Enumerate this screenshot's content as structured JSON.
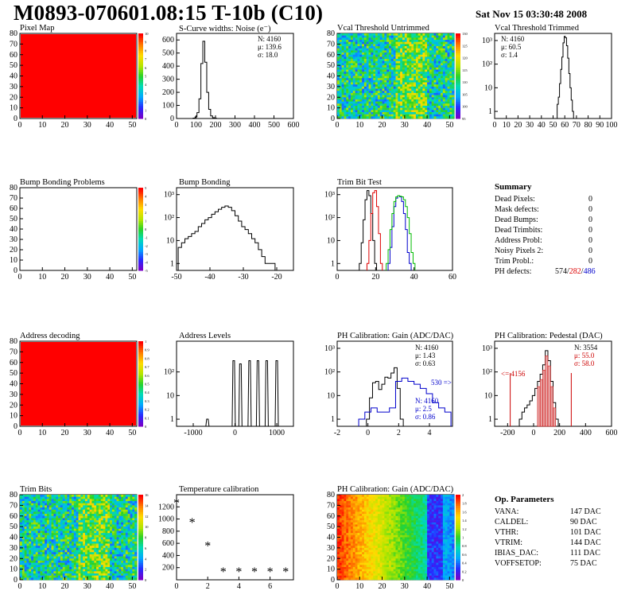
{
  "header": {
    "title": "M0893-070601.08:15 T-10b (C10)",
    "date": "Sat Nov 15 03:30:48 2008"
  },
  "panels": {
    "p1": {
      "title": "Pixel Map",
      "colorbar_ticks": [
        "10",
        "9",
        "8",
        "7",
        "6",
        "5",
        "4",
        "3",
        "2",
        "1",
        "0"
      ]
    },
    "p2": {
      "title": "S-Curve widths: Noise (e⁻)",
      "stats": [
        "N: 4160",
        "μ: 139.6",
        "σ: 18.0"
      ]
    },
    "p3": {
      "title": "Vcal Threshold Untrimmed",
      "colorbar_ticks": [
        "130",
        "125",
        "120",
        "115",
        "110",
        "105",
        "100",
        "95"
      ]
    },
    "p4": {
      "title": "Vcal Threshold Trimmed",
      "stats": [
        "N: 4160",
        "μ: 60.5",
        "σ:  1.4"
      ]
    },
    "p5": {
      "title": "Bump Bonding Problems",
      "colorbar_ticks": [
        "5",
        "4",
        "3",
        "2",
        "1",
        "0",
        "-1",
        "-2",
        "-3",
        "-4",
        "-5"
      ]
    },
    "p6": {
      "title": "Bump Bonding"
    },
    "p7": {
      "title": "Trim Bit Test"
    },
    "p9": {
      "title": "Address decoding",
      "colorbar_ticks": [
        "1",
        "0.9",
        "0.8",
        "0.7",
        "0.6",
        "0.5",
        "0.4",
        "0.3",
        "0.2",
        "0.1",
        "0"
      ]
    },
    "p10": {
      "title": "Address Levels"
    },
    "p11": {
      "title": "PH Calibration: Gain (ADC/DAC)",
      "stats": [
        "N: 4160",
        "μ: 1.43",
        "σ: 0.63"
      ],
      "overflow": "530 =>",
      "stats2": [
        "N: 4160",
        "μ: 2.5",
        "σ: 0.86"
      ]
    },
    "p12": {
      "title": "PH Calibration: Pedestal (DAC)",
      "stats": [
        "N: 3554",
        "μ: 55.0",
        "σ: 58.0"
      ],
      "underflow": "<= 4156"
    },
    "p13": {
      "title": "Trim Bits",
      "colorbar_ticks": [
        "16",
        "14",
        "12",
        "10",
        "8",
        "6",
        "4",
        "2",
        "0"
      ]
    },
    "p14": {
      "title": "Temperature calibration"
    },
    "p15": {
      "title": "PH Calibration: Gain (ADC/DAC)",
      "colorbar_ticks": [
        "2",
        "1.8",
        "1.6",
        "1.4",
        "1.2",
        "1",
        "0.8",
        "0.6",
        "0.4",
        "0.2",
        "0"
      ]
    }
  },
  "summary": {
    "title": "Summary",
    "rows": [
      {
        "label": "Dead Pixels:",
        "value": "0"
      },
      {
        "label": "Mask defects:",
        "value": "0"
      },
      {
        "label": "Dead Bumps:",
        "value": "0"
      },
      {
        "label": "Dead Trimbits:",
        "value": "0"
      },
      {
        "label": "Address Probl:",
        "value": "0"
      },
      {
        "label": "Noisy Pixels 2:",
        "value": "0"
      },
      {
        "label": "Trim Probl.:",
        "value": "0"
      }
    ],
    "ph_label": "PH defects:",
    "ph_values": [
      "574",
      "282",
      "486"
    ]
  },
  "op_params": {
    "title": "Op. Parameters",
    "rows": [
      {
        "label": "VANA:",
        "value": "147 DAC"
      },
      {
        "label": "CALDEL:",
        "value": "90 DAC"
      },
      {
        "label": "VTHR:",
        "value": "101 DAC"
      },
      {
        "label": "VTRIM:",
        "value": "144 DAC"
      },
      {
        "label": "IBIAS_DAC:",
        "value": "111 DAC"
      },
      {
        "label": "VOFFSETOP:",
        "value": "75 DAC"
      }
    ]
  },
  "chart_data": [
    {
      "id": "p1",
      "type": "heatmap",
      "title": "Pixel Map",
      "xlim": [
        0,
        52
      ],
      "ylim": [
        0,
        80
      ],
      "xticks": [
        0,
        10,
        20,
        30,
        40,
        50
      ],
      "yticks": [
        0,
        10,
        20,
        30,
        40,
        50,
        60,
        70,
        80
      ],
      "zlim": [
        0,
        10
      ],
      "fill": "uniform-max"
    },
    {
      "id": "p2",
      "type": "bar",
      "title": "S-Curve widths: Noise (e-)",
      "xlim": [
        0,
        600
      ],
      "ylim": [
        0,
        650
      ],
      "xticks": [
        0,
        100,
        200,
        300,
        400,
        500,
        600
      ],
      "yticks": [
        0,
        100,
        200,
        300,
        400,
        500,
        600
      ],
      "x": [
        80,
        90,
        100,
        110,
        120,
        130,
        140,
        150,
        160,
        170,
        180,
        190,
        200,
        210,
        220
      ],
      "values": [
        0,
        3,
        12,
        45,
        150,
        420,
        590,
        430,
        200,
        70,
        20,
        6,
        2,
        0,
        0
      ]
    },
    {
      "id": "p3",
      "type": "heatmap",
      "title": "Vcal Threshold Untrimmed",
      "xlim": [
        0,
        52
      ],
      "ylim": [
        0,
        80
      ],
      "xticks": [
        0,
        10,
        20,
        30,
        40,
        50
      ],
      "yticks": [
        0,
        10,
        20,
        30,
        40,
        50,
        60,
        70,
        80
      ],
      "zlim": [
        92,
        132
      ],
      "fill": "noise-mid"
    },
    {
      "id": "p4",
      "type": "bar",
      "title": "Vcal Threshold Trimmed",
      "log": true,
      "xlim": [
        0,
        100
      ],
      "ylim": [
        0.5,
        2000
      ],
      "xticks": [
        0,
        10,
        20,
        30,
        40,
        50,
        60,
        70,
        80,
        90,
        100
      ],
      "ylabels": [
        "1",
        "10",
        "10²",
        "10³"
      ],
      "x": [
        54,
        55,
        56,
        57,
        58,
        59,
        60,
        61,
        62,
        63,
        64,
        65,
        66,
        67
      ],
      "values": [
        2,
        4,
        15,
        60,
        200,
        800,
        1500,
        1300,
        600,
        180,
        40,
        10,
        3,
        1
      ]
    },
    {
      "id": "p5",
      "type": "heatmap",
      "title": "Bump Bonding Problems",
      "xlim": [
        0,
        52
      ],
      "ylim": [
        0,
        80
      ],
      "xticks": [
        0,
        10,
        20,
        30,
        40,
        50
      ],
      "yticks": [
        0,
        10,
        20,
        30,
        40,
        50,
        60,
        70,
        80
      ],
      "zlim": [
        -5,
        5
      ],
      "fill": "empty"
    },
    {
      "id": "p6",
      "type": "bar",
      "title": "Bump Bonding",
      "log": true,
      "xlim": [
        -50,
        -15
      ],
      "ylim": [
        0.5,
        2000
      ],
      "xticks": [
        -50,
        -40,
        -30,
        -20
      ],
      "ylabels": [
        "1",
        "10",
        "10²",
        "10³"
      ],
      "x": [
        -49,
        -48,
        -47,
        -46,
        -45,
        -44,
        -43,
        -42,
        -41,
        -40,
        -39,
        -38,
        -37,
        -36,
        -35,
        -34,
        -33,
        -32,
        -31,
        -30,
        -29,
        -28,
        -27,
        -26,
        -25,
        -24,
        -23,
        -22,
        -21,
        -20
      ],
      "values": [
        5,
        8,
        12,
        15,
        20,
        25,
        40,
        55,
        80,
        100,
        140,
        180,
        230,
        280,
        320,
        280,
        200,
        120,
        70,
        40,
        30,
        20,
        12,
        8,
        4,
        2,
        1,
        1,
        1,
        0.5
      ]
    },
    {
      "id": "p7",
      "type": "bar",
      "title": "Trim Bit Test",
      "log": true,
      "xlim": [
        0,
        60
      ],
      "ylim": [
        0.5,
        2000
      ],
      "xticks": [
        0,
        20,
        40,
        60
      ],
      "ylabels": [
        "1",
        "10",
        "10²",
        "10³"
      ],
      "series": [
        {
          "name": "black",
          "color": "#000000",
          "x": [
            12,
            13,
            14,
            15,
            16,
            17,
            18,
            19,
            20
          ],
          "values": [
            1,
            8,
            80,
            600,
            1500,
            900,
            150,
            10,
            1
          ]
        },
        {
          "name": "red",
          "color": "#dd0000",
          "x": [
            16,
            17,
            18,
            19,
            20,
            21,
            22,
            23
          ],
          "values": [
            1,
            10,
            150,
            1200,
            1500,
            300,
            20,
            1
          ]
        },
        {
          "name": "blue",
          "color": "#0000cc",
          "x": [
            27,
            28,
            29,
            30,
            31,
            32,
            33,
            34,
            35,
            36,
            37,
            38
          ],
          "values": [
            1,
            5,
            40,
            300,
            700,
            900,
            800,
            500,
            150,
            30,
            3,
            1
          ]
        },
        {
          "name": "green",
          "color": "#00bb00",
          "x": [
            26,
            27,
            28,
            29,
            30,
            31,
            32,
            33,
            34,
            35,
            36,
            37,
            38,
            39,
            40
          ],
          "values": [
            1,
            4,
            30,
            150,
            500,
            800,
            900,
            850,
            800,
            600,
            300,
            100,
            20,
            3,
            1
          ]
        }
      ]
    },
    {
      "id": "p9",
      "type": "heatmap",
      "title": "Address decoding",
      "xlim": [
        0,
        52
      ],
      "ylim": [
        0,
        80
      ],
      "xticks": [
        0,
        10,
        20,
        30,
        40,
        50
      ],
      "yticks": [
        0,
        10,
        20,
        30,
        40,
        50,
        60,
        70,
        80
      ],
      "zlim": [
        0,
        1
      ],
      "fill": "uniform-max"
    },
    {
      "id": "p10",
      "type": "bar",
      "title": "Address Levels",
      "log": true,
      "xlim": [
        -1400,
        1400
      ],
      "ylim": [
        0.5,
        2000
      ],
      "xticks": [
        -1000,
        0,
        1000
      ],
      "ylabels": [
        "1",
        "10",
        "10²"
      ],
      "peaks": [
        -660,
        -30,
        130,
        350,
        550,
        760,
        1000
      ],
      "peak_values": [
        1,
        300,
        220,
        300,
        300,
        300,
        300
      ]
    },
    {
      "id": "p11",
      "type": "bar",
      "title": "PH Calibration: Gain (ADC/DAC)",
      "log": true,
      "xlim": [
        -2,
        5.5
      ],
      "ylim": [
        0.5,
        2000
      ],
      "xticks": [
        -2,
        0,
        2,
        4
      ],
      "ylabels": [
        "1",
        "10",
        "10²",
        "10³"
      ],
      "series": [
        {
          "name": "black",
          "color": "#000000",
          "x": [
            0,
            0.2,
            0.4,
            0.6,
            0.8,
            1,
            1.2,
            1.4,
            1.6,
            1.8,
            2,
            2.2
          ],
          "values": [
            1,
            8,
            35,
            40,
            18,
            30,
            60,
            55,
            90,
            150,
            20,
            1
          ]
        },
        {
          "name": "blue",
          "color": "#0000cc",
          "x": [
            -0.4,
            0,
            0.4,
            0.8,
            1.2,
            1.6,
            2,
            2.4,
            2.8,
            3.2,
            3.6,
            4,
            4.4,
            4.8,
            5.2
          ],
          "values": [
            1,
            2,
            3,
            2,
            2,
            3,
            40,
            55,
            40,
            30,
            20,
            12,
            5,
            3,
            2
          ]
        }
      ]
    },
    {
      "id": "p12",
      "type": "bar",
      "title": "PH Calibration: Pedestal (DAC)",
      "log": true,
      "xlim": [
        -300,
        600
      ],
      "ylim": [
        0.5,
        2000
      ],
      "xticks": [
        -200,
        0,
        200,
        400,
        600
      ],
      "ylabels": [
        "1",
        "10",
        "10²",
        "10³"
      ],
      "x": [
        -100,
        -80,
        -60,
        -40,
        -20,
        0,
        20,
        40,
        60,
        80,
        100,
        120,
        140,
        160,
        180
      ],
      "values": [
        1,
        2,
        3,
        4,
        6,
        10,
        20,
        40,
        80,
        200,
        800,
        300,
        40,
        5,
        1
      ],
      "lines": [
        -180,
        290
      ]
    },
    {
      "id": "p13",
      "type": "heatmap",
      "title": "Trim Bits",
      "xlim": [
        0,
        52
      ],
      "ylim": [
        0,
        80
      ],
      "xticks": [
        0,
        10,
        20,
        30,
        40,
        50
      ],
      "yticks": [
        0,
        10,
        20,
        30,
        40,
        50,
        60,
        70,
        80
      ],
      "zlim": [
        0,
        16
      ],
      "fill": "noise-mid"
    },
    {
      "id": "p14",
      "type": "scatter",
      "title": "Temperature calibration",
      "xlim": [
        0,
        7.5
      ],
      "ylim": [
        0,
        1400
      ],
      "xticks": [
        0,
        2,
        4,
        6
      ],
      "yticks": [
        200,
        400,
        600,
        800,
        1000,
        1200
      ],
      "x": [
        0,
        1,
        2,
        3,
        4,
        5,
        6,
        7
      ],
      "y": [
        1250,
        930,
        540,
        120,
        120,
        120,
        120,
        120
      ]
    },
    {
      "id": "p15",
      "type": "heatmap",
      "title": "PH Calibration: Gain (ADC/DAC)",
      "xlim": [
        0,
        52
      ],
      "ylim": [
        0,
        80
      ],
      "xticks": [
        0,
        10,
        20,
        30,
        40,
        50
      ],
      "yticks": [
        0,
        10,
        20,
        30,
        40,
        50,
        60,
        70,
        80
      ],
      "zlim": [
        0,
        2
      ],
      "fill": "gradient-x"
    }
  ]
}
